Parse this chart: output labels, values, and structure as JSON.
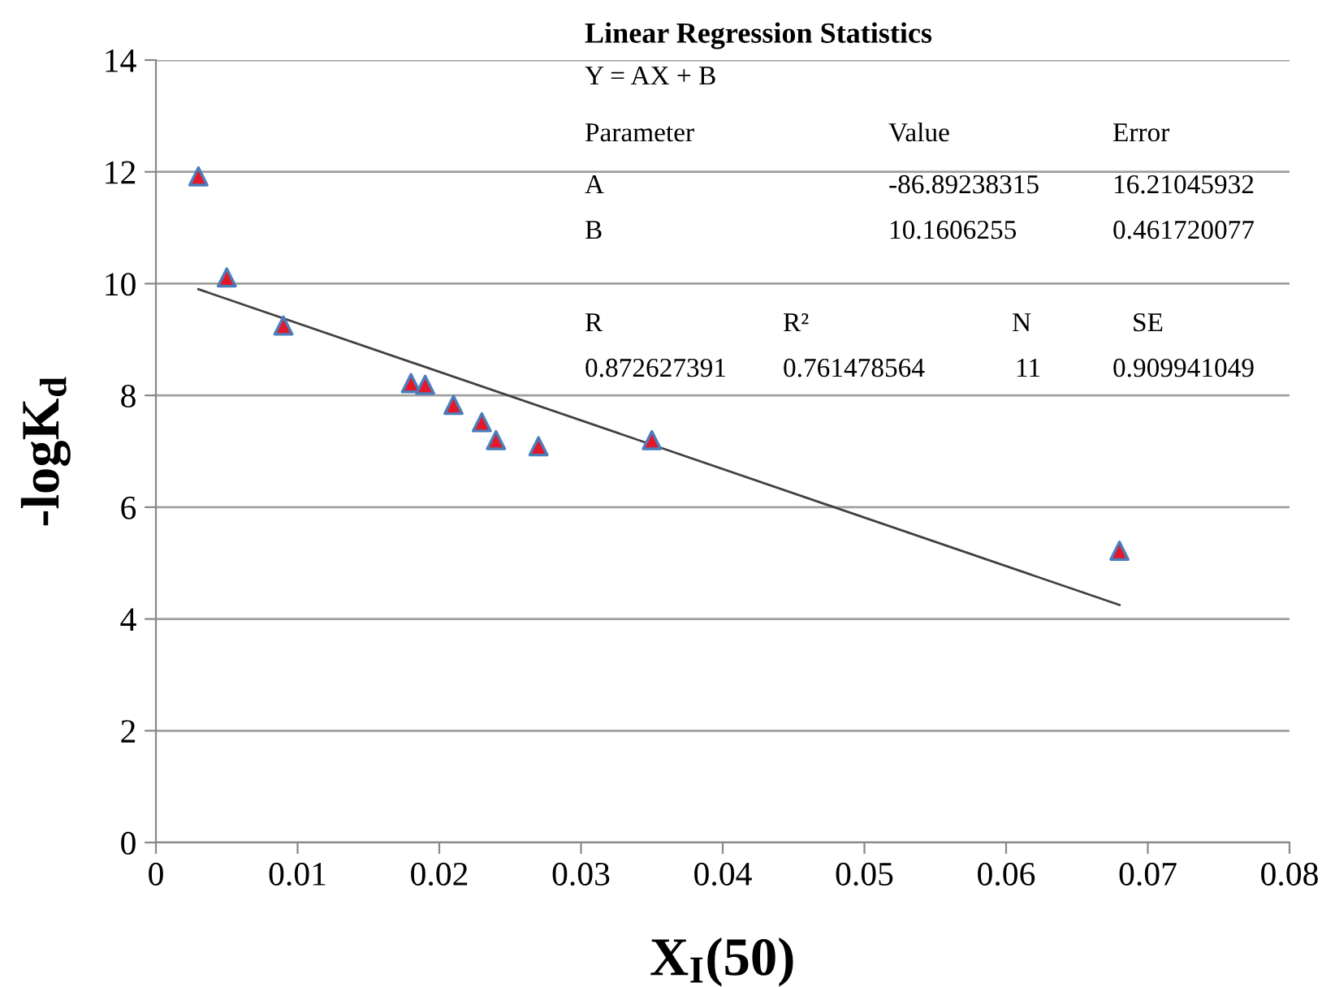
{
  "chart_data": {
    "type": "scatter",
    "xlabel": "X$_{I}$(50)",
    "ylabel": "-logK$_{d}$",
    "x": [
      0.003,
      0.005,
      0.009,
      0.018,
      0.019,
      0.021,
      0.023,
      0.024,
      0.027,
      0.035,
      0.068
    ],
    "series": [
      {
        "color": "#e3192b",
        "marker": "triangle",
        "values": [
          11.92,
          10.11,
          9.25,
          8.22,
          8.19,
          7.83,
          7.52,
          7.2,
          7.09,
          7.2,
          5.22
        ]
      },
      {
        "type": "line",
        "marker": "none",
        "color": "#404040",
        "x": [
          0.003,
          0.068
        ],
        "values": [
          9.9,
          4.25
        ]
      }
    ],
    "xlim": [
      0,
      0.08
    ],
    "xticks": [
      0,
      0.01,
      0.02,
      0.03,
      0.04,
      0.05,
      0.06,
      0.07,
      0.08
    ],
    "ylim": [
      0,
      14
    ],
    "yticks": [
      0,
      2,
      4,
      6,
      8,
      10,
      12,
      14
    ],
    "grid": "y",
    "annotations": [
      "Linear Regression Statistics",
      "Y = AX + B",
      "Parameter",
      "Value",
      "Error",
      "A",
      "-86.89238315",
      "16.21045932",
      "B",
      "10.1606255",
      "0.461720077",
      "R",
      "R²",
      "N",
      "SE",
      "0.872627391",
      "0.761478564",
      "11",
      "0.909941049"
    ]
  }
}
